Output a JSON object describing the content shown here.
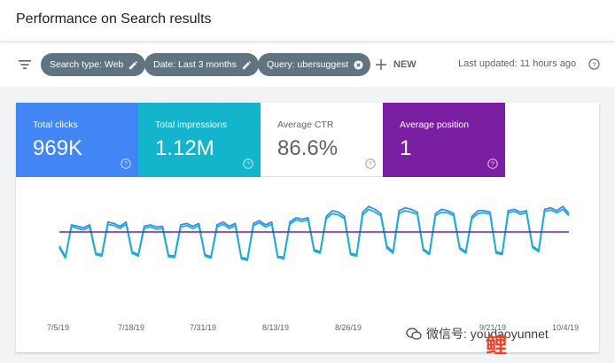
{
  "header": {
    "title": "Performance on Search results"
  },
  "filters": {
    "chips": [
      {
        "label": "Search type: Web"
      },
      {
        "label": "Date: Last 3 months"
      },
      {
        "label": "Query: ubersuggest"
      }
    ],
    "new_label": "NEW",
    "last_updated": "Last updated: 11 hours ago"
  },
  "metrics": [
    {
      "label": "Total clicks",
      "value": "969K",
      "color": "#4285f4"
    },
    {
      "label": "Total impressions",
      "value": "1.12M",
      "color": "#12b5cb"
    },
    {
      "label": "Average CTR",
      "value": "86.6%",
      "color": "#ffffff"
    },
    {
      "label": "Average position",
      "value": "1",
      "color": "#7b1fa2"
    }
  ],
  "chart_data": {
    "type": "line",
    "x_ticks": [
      "7/5/19",
      "7/18/19",
      "7/31/19",
      "8/13/19",
      "8/26/19",
      "9/21/19",
      "10/4/19"
    ],
    "series": [
      {
        "color": "#4285f4",
        "values": [
          0.3,
          0.15,
          0.6,
          0.58,
          0.56,
          0.6,
          0.2,
          0.18,
          0.64,
          0.62,
          0.58,
          0.64,
          0.22,
          0.18,
          0.58,
          0.6,
          0.57,
          0.58,
          0.17,
          0.16,
          0.6,
          0.62,
          0.58,
          0.62,
          0.18,
          0.15,
          0.6,
          0.64,
          0.58,
          0.62,
          0.14,
          0.12,
          0.62,
          0.66,
          0.6,
          0.64,
          0.16,
          0.14,
          0.64,
          0.7,
          0.68,
          0.7,
          0.25,
          0.22,
          0.72,
          0.8,
          0.78,
          0.72,
          0.2,
          0.18,
          0.78,
          0.86,
          0.82,
          0.76,
          0.3,
          0.22,
          0.8,
          0.84,
          0.82,
          0.78,
          0.26,
          0.2,
          0.76,
          0.82,
          0.8,
          0.76,
          0.28,
          0.22,
          0.72,
          0.8,
          0.8,
          0.78,
          0.22,
          0.2,
          0.8,
          0.82,
          0.78,
          0.8,
          0.3,
          0.24,
          0.82,
          0.84,
          0.8,
          0.86,
          0.76
        ]
      },
      {
        "color": "#12b5cb",
        "values": [
          0.28,
          0.13,
          0.58,
          0.55,
          0.53,
          0.57,
          0.18,
          0.16,
          0.61,
          0.59,
          0.55,
          0.61,
          0.2,
          0.16,
          0.55,
          0.57,
          0.54,
          0.55,
          0.15,
          0.14,
          0.57,
          0.59,
          0.55,
          0.59,
          0.16,
          0.13,
          0.57,
          0.61,
          0.55,
          0.59,
          0.12,
          0.1,
          0.59,
          0.63,
          0.57,
          0.61,
          0.14,
          0.12,
          0.61,
          0.67,
          0.65,
          0.67,
          0.23,
          0.2,
          0.69,
          0.76,
          0.74,
          0.69,
          0.18,
          0.16,
          0.74,
          0.82,
          0.78,
          0.73,
          0.27,
          0.2,
          0.76,
          0.8,
          0.78,
          0.75,
          0.24,
          0.18,
          0.73,
          0.78,
          0.77,
          0.73,
          0.26,
          0.2,
          0.69,
          0.76,
          0.77,
          0.75,
          0.2,
          0.18,
          0.77,
          0.79,
          0.75,
          0.77,
          0.28,
          0.22,
          0.79,
          0.81,
          0.77,
          0.82,
          0.73
        ]
      },
      {
        "color": "#7b1fa2",
        "values": [
          0.5,
          0.5,
          0.5,
          0.5,
          0.5,
          0.5,
          0.5,
          0.5,
          0.5,
          0.5,
          0.5,
          0.5,
          0.5,
          0.5,
          0.5,
          0.5,
          0.5,
          0.5,
          0.5,
          0.5,
          0.5,
          0.5,
          0.5,
          0.5,
          0.5,
          0.5,
          0.5,
          0.5,
          0.5,
          0.5,
          0.5,
          0.5,
          0.5,
          0.5,
          0.5,
          0.5,
          0.5,
          0.5,
          0.5,
          0.5,
          0.5,
          0.5,
          0.5,
          0.5,
          0.5,
          0.5,
          0.5,
          0.5,
          0.5,
          0.5,
          0.5,
          0.5,
          0.5,
          0.5,
          0.5,
          0.5,
          0.5,
          0.5,
          0.5,
          0.5,
          0.5,
          0.5,
          0.5,
          0.5,
          0.5,
          0.5,
          0.5,
          0.5,
          0.5,
          0.5,
          0.5,
          0.5,
          0.5,
          0.5,
          0.5,
          0.5,
          0.5,
          0.5,
          0.5,
          0.5,
          0.5,
          0.5,
          0.5,
          0.5,
          0.5
        ]
      }
    ]
  },
  "watermark": {
    "text": "微信号: youdaoyunnet",
    "logo": "鲤"
  }
}
